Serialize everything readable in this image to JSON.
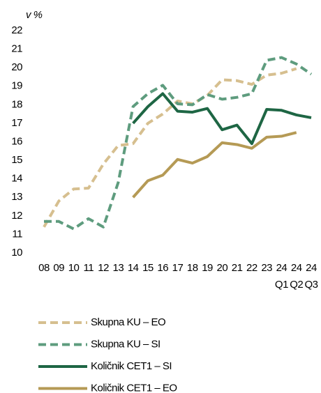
{
  "chart_data": {
    "type": "line",
    "y_axis_label": "v %",
    "categories": [
      "08",
      "09",
      "10",
      "11",
      "12",
      "13",
      "14",
      "15",
      "16",
      "17",
      "18",
      "19",
      "20",
      "21",
      "22",
      "23",
      "24",
      "24",
      "24"
    ],
    "category_quarters": [
      null,
      null,
      null,
      null,
      null,
      null,
      null,
      null,
      null,
      null,
      null,
      null,
      null,
      null,
      null,
      null,
      "Q1",
      "Q2",
      "Q3"
    ],
    "ylim": [
      10,
      22
    ],
    "yticks": [
      10,
      11,
      12,
      13,
      14,
      15,
      16,
      17,
      18,
      19,
      20,
      21,
      22
    ],
    "grid": false,
    "legend": "bottom",
    "series": [
      {
        "name": "Skupna KU – EO",
        "color": "#d6bf8f",
        "dashed": true,
        "values": [
          11.4,
          12.8,
          13.45,
          13.5,
          14.8,
          15.8,
          15.9,
          17.0,
          17.5,
          18.2,
          18.05,
          18.5,
          19.35,
          19.3,
          19.1,
          19.6,
          19.7,
          19.95,
          null
        ]
      },
      {
        "name": "Skupna KU – SI",
        "color": "#5e9c7e",
        "dashed": true,
        "values": [
          11.7,
          11.7,
          11.3,
          11.85,
          11.4,
          13.8,
          17.9,
          18.6,
          19.05,
          18.05,
          18.0,
          18.55,
          18.3,
          18.4,
          18.6,
          20.4,
          20.55,
          20.2,
          19.65
        ]
      },
      {
        "name": "Količnik CET1 – SI",
        "color": "#1e6644",
        "dashed": false,
        "values": [
          null,
          null,
          null,
          null,
          null,
          null,
          17.0,
          17.9,
          18.6,
          17.65,
          17.6,
          17.8,
          16.65,
          16.9,
          15.9,
          17.75,
          17.7,
          17.45,
          17.3
        ]
      },
      {
        "name": "Količnik CET1 – EO",
        "color": "#b59a55",
        "dashed": false,
        "values": [
          null,
          null,
          null,
          null,
          null,
          null,
          13.0,
          13.9,
          14.2,
          15.05,
          14.85,
          15.2,
          15.95,
          15.85,
          15.65,
          16.25,
          16.3,
          16.5,
          null
        ]
      }
    ]
  }
}
